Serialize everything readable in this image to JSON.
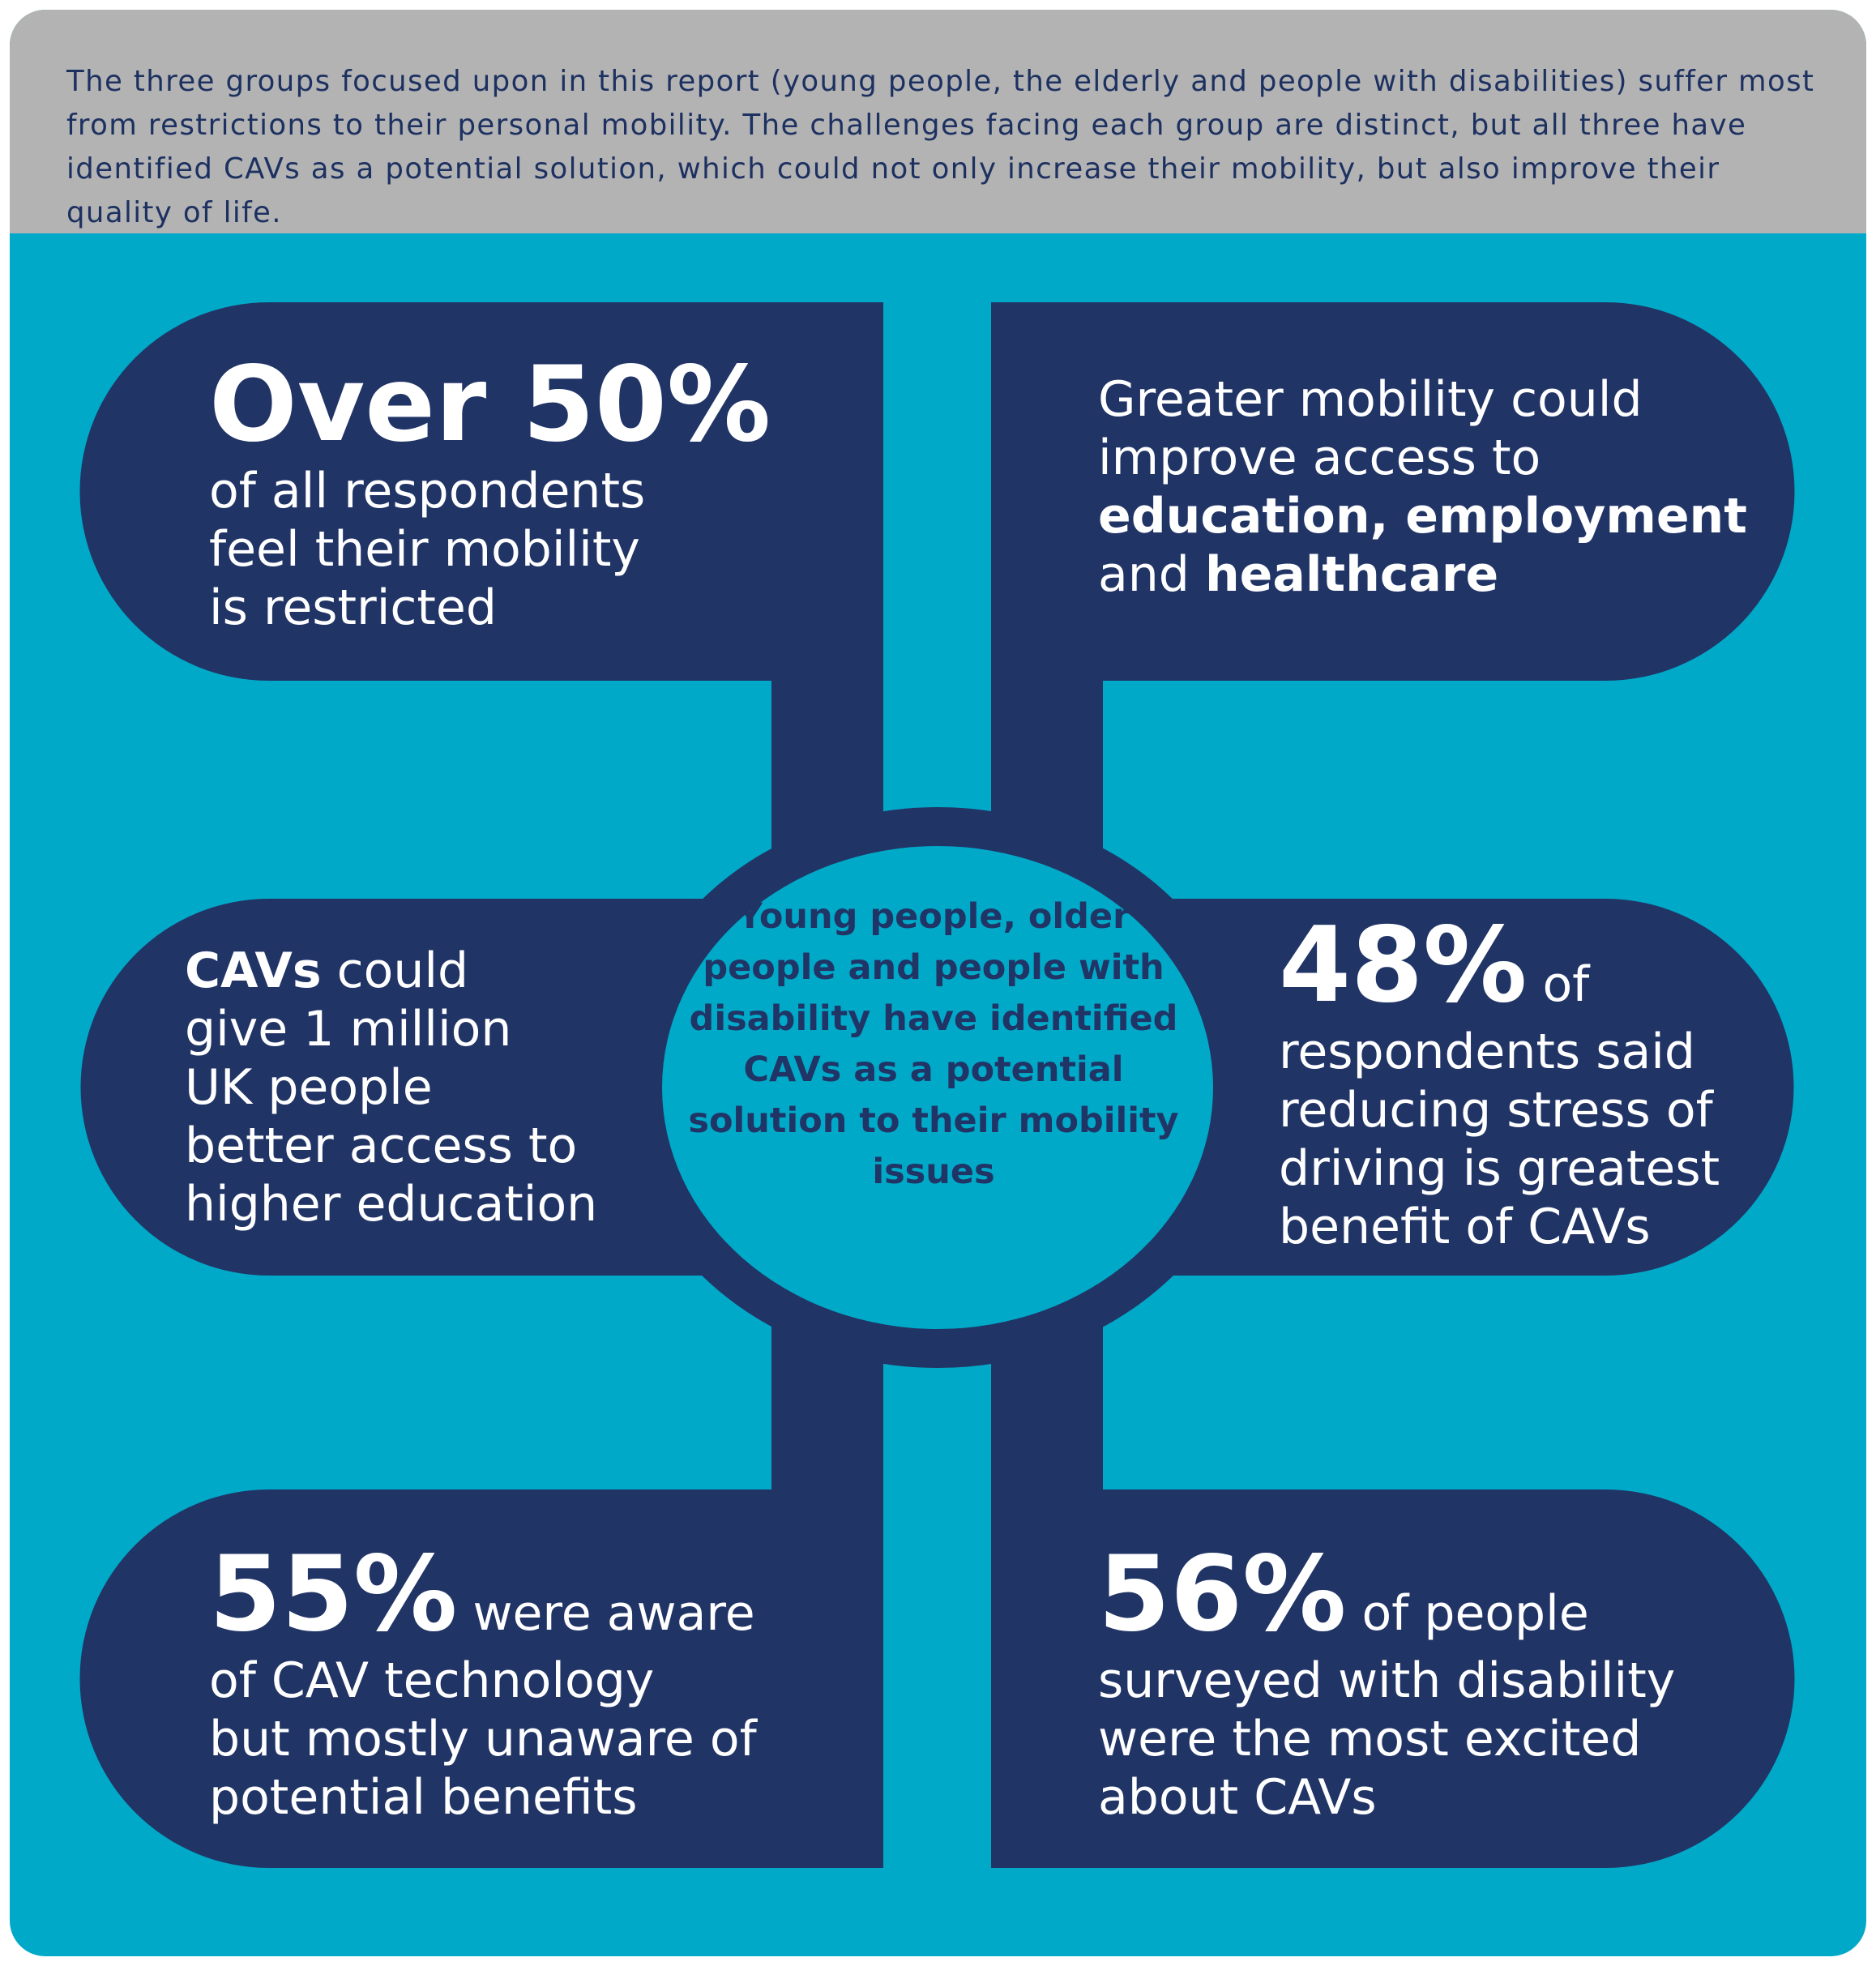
{
  "intro": "The three groups focused upon in this report (young people, the elderly and people with disabilities) suffer most from restrictions to their personal mobility. The challenges facing each group are distinct, but all three have identified CAVs as a potential solution, which could not only increase their mobility, but also improve their quality of life.",
  "center": "Young people, older people and people with disability have identified CAVs as a potential solution to their mobility issues",
  "colors": {
    "cyan": "#00a9c8",
    "navy": "#213466",
    "grey": "#b3b3b3"
  },
  "top_left": {
    "big": "Over 50%",
    "l1": "of all respondents",
    "l2": "feel their mobility",
    "l3": "is restricted"
  },
  "top_right": {
    "l1": "Greater mobility could",
    "l2": "improve access to",
    "b1": "education, employment",
    "and": "and ",
    "b2": "healthcare"
  },
  "mid_left": {
    "b1": "CAVs",
    "l1_rest": " could",
    "l2": "give 1 million",
    "l3": "UK people",
    "l4": "better access to",
    "l5": "higher education"
  },
  "mid_right": {
    "big": "48%",
    "l1_rest": " of",
    "l2": "respondents said",
    "l3": "reducing stress of",
    "l4": "driving is greatest",
    "l5": "benefit of CAVs"
  },
  "bottom_left": {
    "big": "55%",
    "l1_rest": " were aware",
    "l2": "of CAV technology",
    "l3": "but mostly unaware of",
    "l4": "potential benefits"
  },
  "bottom_right": {
    "big": "56%",
    "l1_rest": " of people",
    "l2": "surveyed with disability",
    "l3": "were the most excited",
    "l4": "about CAVs"
  }
}
